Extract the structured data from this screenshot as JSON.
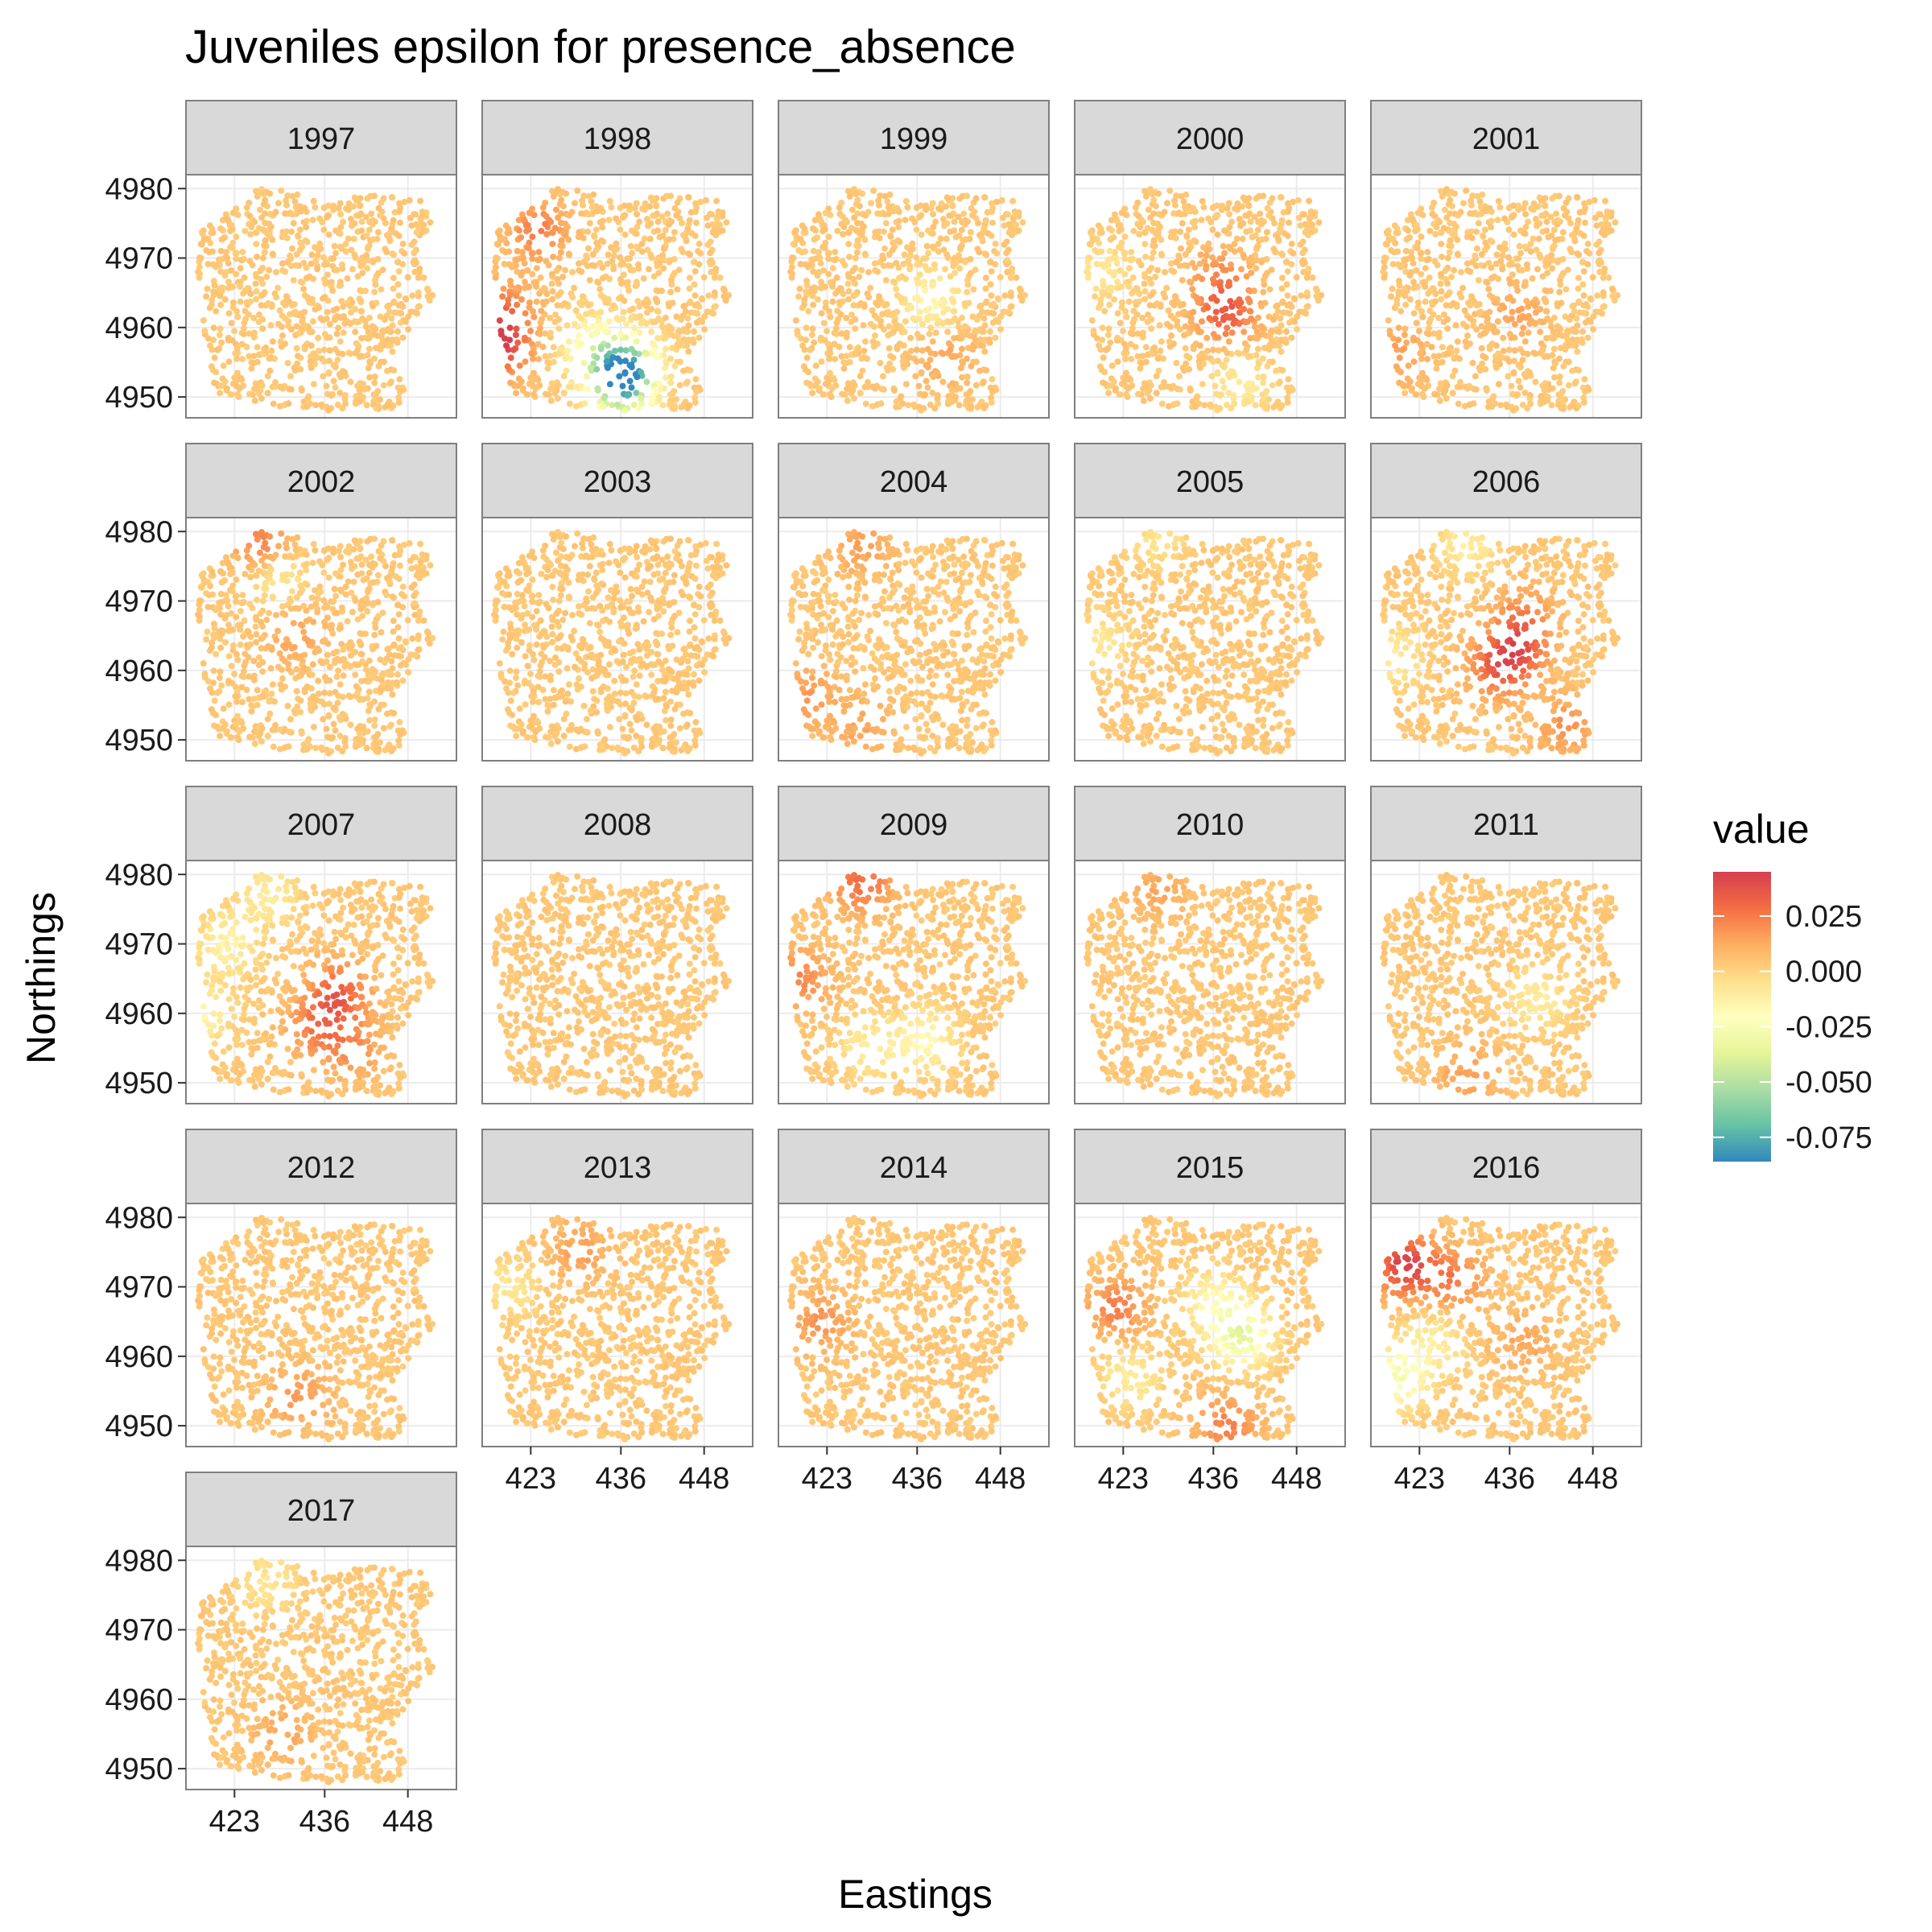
{
  "chart_data": {
    "type": "scatter",
    "title": "Juveniles epsilon for presence_absence",
    "xlabel": "Eastings",
    "ylabel": "Northings",
    "x_ticks": [
      423,
      436,
      448
    ],
    "y_ticks": [
      4950,
      4960,
      4970,
      4980
    ],
    "xlim": [
      416,
      455
    ],
    "ylim": [
      4947,
      4982
    ],
    "facet_by": "year",
    "facet_columns": 5,
    "panels": [
      "1997",
      "1998",
      "1999",
      "2000",
      "2001",
      "2002",
      "2003",
      "2004",
      "2005",
      "2006",
      "2007",
      "2008",
      "2009",
      "2010",
      "2011",
      "2012",
      "2013",
      "2014",
      "2015",
      "2016",
      "2017"
    ],
    "legend": {
      "title": "value",
      "position": "right",
      "ticks": [
        0.025,
        0.0,
        -0.025,
        -0.05,
        -0.075
      ],
      "tick_labels": [
        "0.025",
        "0.000",
        "-0.025",
        "-0.050",
        "-0.075"
      ],
      "range": [
        -0.086,
        0.045
      ],
      "palette": [
        "#3288bd",
        "#66c2a5",
        "#abdda4",
        "#e6f598",
        "#ffffbf",
        "#fee08b",
        "#fdae61",
        "#f46d43",
        "#d53e4f"
      ]
    },
    "grid": true,
    "panel_hotspots": {
      "1997": [],
      "1998": [
        {
          "x": 424,
          "y": 4974,
          "value": 0.02
        },
        {
          "x": 419,
          "y": 4962,
          "value": 0.025
        },
        {
          "x": 418,
          "y": 4957,
          "value": 0.04
        },
        {
          "x": 437,
          "y": 4955,
          "value": -0.045
        },
        {
          "x": 436,
          "y": 4952,
          "value": -0.08
        },
        {
          "x": 432,
          "y": 4957,
          "value": -0.03
        }
      ],
      "1999": [
        {
          "x": 438,
          "y": 4964,
          "value": -0.02
        },
        {
          "x": 440,
          "y": 4956,
          "value": 0.01
        }
      ],
      "2000": [
        {
          "x": 438,
          "y": 4962,
          "value": 0.028
        },
        {
          "x": 437,
          "y": 4967,
          "value": 0.015
        },
        {
          "x": 420,
          "y": 4968,
          "value": -0.012
        },
        {
          "x": 440,
          "y": 4952,
          "value": -0.015
        }
      ],
      "2001": [
        {
          "x": 437,
          "y": 4962,
          "value": 0.01
        },
        {
          "x": 420,
          "y": 4956,
          "value": 0.012
        }
      ],
      "2002": [
        {
          "x": 427,
          "y": 4978,
          "value": 0.022
        },
        {
          "x": 429,
          "y": 4974,
          "value": -0.015
        },
        {
          "x": 432,
          "y": 4965,
          "value": 0.01
        }
      ],
      "2003": [],
      "2004": [
        {
          "x": 428,
          "y": 4978,
          "value": 0.012
        },
        {
          "x": 420,
          "y": 4956,
          "value": 0.014
        },
        {
          "x": 428,
          "y": 4952,
          "value": 0.01
        }
      ],
      "2005": [
        {
          "x": 420,
          "y": 4964,
          "value": -0.012
        },
        {
          "x": 428,
          "y": 4979,
          "value": -0.01
        }
      ],
      "2006": [
        {
          "x": 437,
          "y": 4963,
          "value": 0.03
        },
        {
          "x": 434,
          "y": 4960,
          "value": 0.022
        },
        {
          "x": 438,
          "y": 4968,
          "value": 0.015
        },
        {
          "x": 444,
          "y": 4952,
          "value": 0.015
        },
        {
          "x": 419,
          "y": 4962,
          "value": -0.015
        },
        {
          "x": 430,
          "y": 4978,
          "value": -0.015
        }
      ],
      "2007": [
        {
          "x": 438,
          "y": 4963,
          "value": 0.028
        },
        {
          "x": 435,
          "y": 4958,
          "value": 0.02
        },
        {
          "x": 440,
          "y": 4955,
          "value": 0.015
        },
        {
          "x": 422,
          "y": 4970,
          "value": -0.018
        },
        {
          "x": 418,
          "y": 4960,
          "value": -0.02
        },
        {
          "x": 428,
          "y": 4977,
          "value": -0.015
        }
      ],
      "2009": [
        {
          "x": 428,
          "y": 4979,
          "value": 0.025
        },
        {
          "x": 419,
          "y": 4965,
          "value": 0.018
        },
        {
          "x": 437,
          "y": 4956,
          "value": -0.022
        },
        {
          "x": 429,
          "y": 4955,
          "value": -0.015
        }
      ],
      "2010": [
        {
          "x": 428,
          "y": 4978,
          "value": 0.01
        }
      ],
      "2011": [
        {
          "x": 440,
          "y": 4962,
          "value": -0.015
        },
        {
          "x": 430,
          "y": 4951,
          "value": 0.012
        }
      ],
      "2012": [
        {
          "x": 432,
          "y": 4954,
          "value": 0.014
        }
      ],
      "2013": [
        {
          "x": 420,
          "y": 4970,
          "value": -0.012
        },
        {
          "x": 430,
          "y": 4975,
          "value": 0.012
        }
      ],
      "2014": [
        {
          "x": 422,
          "y": 4965,
          "value": 0.015
        }
      ],
      "2015": [
        {
          "x": 440,
          "y": 4963,
          "value": -0.04
        },
        {
          "x": 436,
          "y": 4968,
          "value": -0.02
        },
        {
          "x": 422,
          "y": 4967,
          "value": 0.02
        },
        {
          "x": 438,
          "y": 4950,
          "value": 0.02
        },
        {
          "x": 424,
          "y": 4957,
          "value": -0.015
        }
      ],
      "2016": [
        {
          "x": 421,
          "y": 4973,
          "value": 0.04
        },
        {
          "x": 428,
          "y": 4971,
          "value": 0.02
        },
        {
          "x": 420,
          "y": 4957,
          "value": -0.03
        },
        {
          "x": 425,
          "y": 4962,
          "value": -0.015
        },
        {
          "x": 438,
          "y": 4962,
          "value": 0.01
        }
      ],
      "2017": [
        {
          "x": 428,
          "y": 4977,
          "value": -0.012
        },
        {
          "x": 430,
          "y": 4955,
          "value": 0.01
        }
      ]
    }
  }
}
